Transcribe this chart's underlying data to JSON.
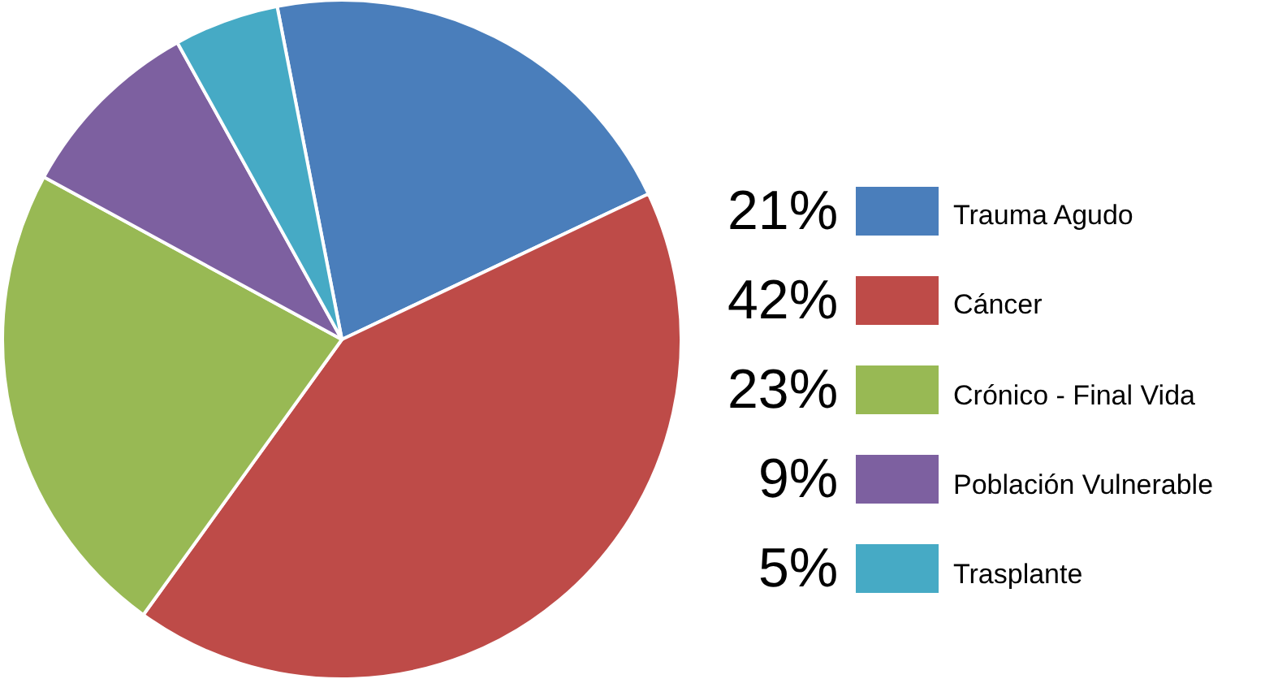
{
  "chart_data": {
    "type": "pie",
    "categories": [
      "Trauma Agudo",
      "Cáncer",
      "Crónico - Final Vida",
      "Población Vulnerable",
      "Trasplante"
    ],
    "values": [
      21,
      42,
      23,
      9,
      5
    ],
    "colors": [
      "#4a7ebb",
      "#be4b48",
      "#98b954",
      "#7d60a0",
      "#46aac5"
    ],
    "value_labels": [
      "21%",
      "42%",
      "23%",
      "9%",
      "5%"
    ],
    "legend": "right"
  }
}
